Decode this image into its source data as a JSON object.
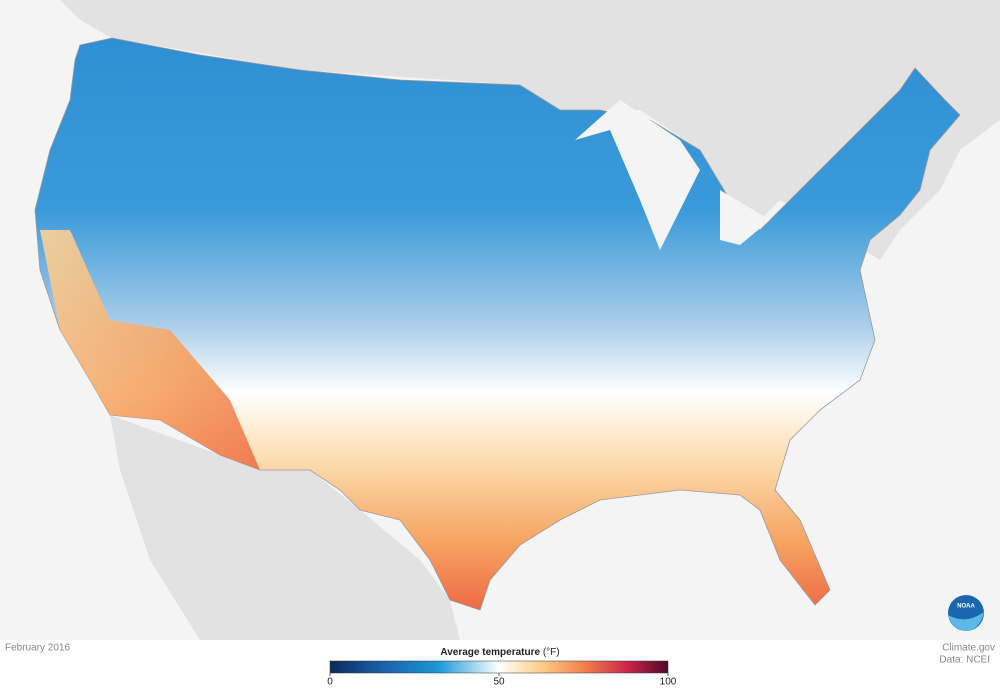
{
  "map": {
    "date": "February 2016",
    "legend": {
      "title": "Average temperature",
      "unit": "(°F)",
      "ticks": [
        0,
        50,
        100
      ]
    }
  },
  "credits": {
    "source": "Climate.gov",
    "data": "Data: NCEI",
    "logo": "NOAA"
  }
}
